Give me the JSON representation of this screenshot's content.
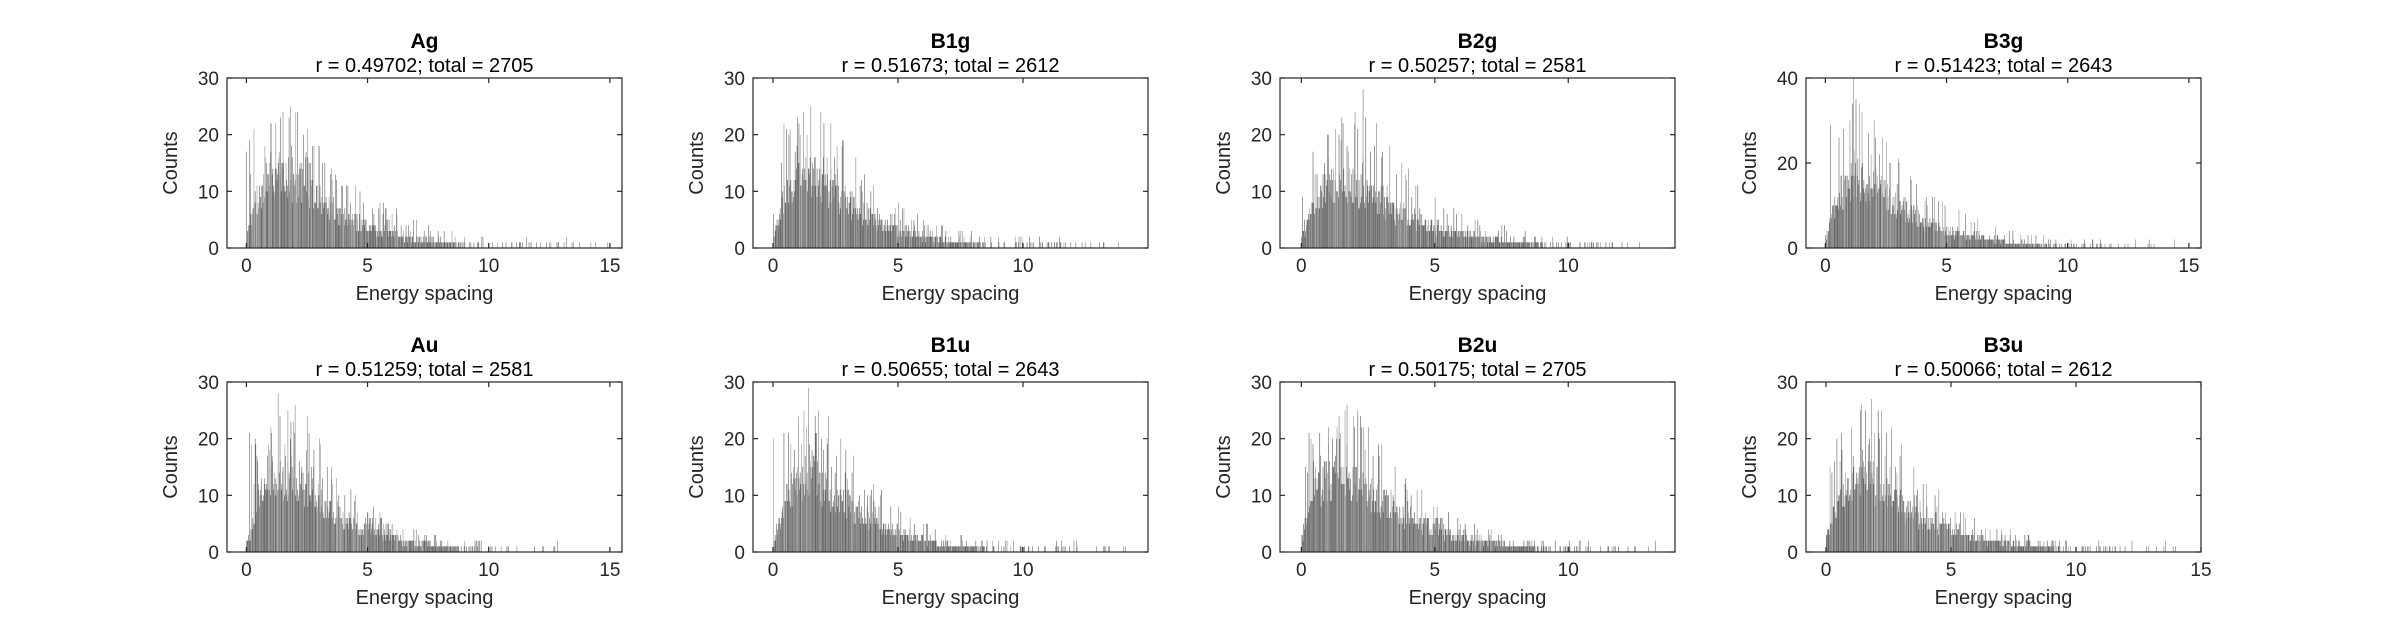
{
  "chart_data": [
    {
      "type": "bar",
      "title": "Ag",
      "subtitle": "r = 0.49702; total = 2705",
      "xlabel": "Energy spacing",
      "ylabel": "Counts",
      "xlim": [
        -0.8,
        15.5
      ],
      "ylim": [
        0,
        30
      ],
      "xticks": [
        0,
        5,
        10,
        15
      ],
      "yticks": [
        0,
        10,
        20,
        30
      ],
      "color": "#666666",
      "grid": false,
      "tail": 15,
      "profile": [
        {
          "x": 0,
          "y": 3
        },
        {
          "x": 0.25,
          "y": 8
        },
        {
          "x": 0.5,
          "y": 12
        },
        {
          "x": 1,
          "y": 15
        },
        {
          "x": 1.5,
          "y": 16
        },
        {
          "x": 2,
          "y": 15
        },
        {
          "x": 2.5,
          "y": 13
        },
        {
          "x": 3,
          "y": 10
        },
        {
          "x": 3.5,
          "y": 8
        },
        {
          "x": 4,
          "y": 6.5
        },
        {
          "x": 5,
          "y": 5
        },
        {
          "x": 6,
          "y": 3
        },
        {
          "x": 7,
          "y": 2
        },
        {
          "x": 8,
          "y": 1.2
        },
        {
          "x": 9,
          "y": 0.6
        },
        {
          "x": 10,
          "y": 0.3
        },
        {
          "x": 11,
          "y": 0.1
        },
        {
          "x": 12,
          "y": 0
        }
      ],
      "peaks": [
        {
          "x": 1.2,
          "y": 22
        },
        {
          "x": 1.5,
          "y": 24
        },
        {
          "x": 1.8,
          "y": 25
        },
        {
          "x": 2.1,
          "y": 24
        },
        {
          "x": 2.5,
          "y": 21
        },
        {
          "x": 3,
          "y": 18
        },
        {
          "x": 3.5,
          "y": 14
        },
        {
          "x": 4.5,
          "y": 11
        },
        {
          "x": 5.5,
          "y": 8
        },
        {
          "x": 7,
          "y": 5
        },
        {
          "x": 9,
          "y": 2
        },
        {
          "x": 12.5,
          "y": 1
        },
        {
          "x": 14.2,
          "y": 1
        }
      ]
    },
    {
      "type": "bar",
      "title": "B1g",
      "subtitle": "r = 0.51673; total = 2612",
      "xlabel": "Energy spacing",
      "ylabel": "Counts",
      "xlim": [
        -0.8,
        15
      ],
      "ylim": [
        0,
        30
      ],
      "xticks": [
        0,
        5,
        10
      ],
      "yticks": [
        0,
        10,
        20,
        30
      ],
      "color": "#666666",
      "grid": false,
      "tail": 14,
      "profile": [
        {
          "x": 0,
          "y": 2
        },
        {
          "x": 0.25,
          "y": 7
        },
        {
          "x": 0.5,
          "y": 12
        },
        {
          "x": 1,
          "y": 15
        },
        {
          "x": 1.5,
          "y": 16
        },
        {
          "x": 2,
          "y": 14
        },
        {
          "x": 2.5,
          "y": 12
        },
        {
          "x": 3,
          "y": 10
        },
        {
          "x": 3.5,
          "y": 8
        },
        {
          "x": 4,
          "y": 6
        },
        {
          "x": 5,
          "y": 4
        },
        {
          "x": 6,
          "y": 2.5
        },
        {
          "x": 7,
          "y": 1.5
        },
        {
          "x": 8,
          "y": 0.8
        },
        {
          "x": 9,
          "y": 0.4
        },
        {
          "x": 10,
          "y": 0.2
        },
        {
          "x": 11,
          "y": 0.1
        },
        {
          "x": 12,
          "y": 0
        }
      ],
      "peaks": [
        {
          "x": 1.2,
          "y": 24
        },
        {
          "x": 1.5,
          "y": 25
        },
        {
          "x": 1.9,
          "y": 24
        },
        {
          "x": 2.3,
          "y": 22
        },
        {
          "x": 2.8,
          "y": 19
        },
        {
          "x": 3.3,
          "y": 16
        },
        {
          "x": 4,
          "y": 11
        },
        {
          "x": 5,
          "y": 8
        },
        {
          "x": 6,
          "y": 5
        },
        {
          "x": 7.5,
          "y": 3
        },
        {
          "x": 9,
          "y": 2
        },
        {
          "x": 13.8,
          "y": 1
        }
      ]
    },
    {
      "type": "bar",
      "title": "B2g",
      "subtitle": "r = 0.50257; total = 2581",
      "xlabel": "Energy spacing",
      "ylabel": "Counts",
      "xlim": [
        -0.8,
        14
      ],
      "ylim": [
        0,
        30
      ],
      "xticks": [
        0,
        5,
        10
      ],
      "yticks": [
        0,
        10,
        20,
        30
      ],
      "color": "#666666",
      "grid": false,
      "tail": 13,
      "profile": [
        {
          "x": 0,
          "y": 2
        },
        {
          "x": 0.25,
          "y": 6
        },
        {
          "x": 0.5,
          "y": 10
        },
        {
          "x": 1,
          "y": 13
        },
        {
          "x": 1.5,
          "y": 14
        },
        {
          "x": 2,
          "y": 13
        },
        {
          "x": 2.5,
          "y": 12
        },
        {
          "x": 3,
          "y": 10
        },
        {
          "x": 3.5,
          "y": 8
        },
        {
          "x": 4,
          "y": 6.5
        },
        {
          "x": 5,
          "y": 4.5
        },
        {
          "x": 6,
          "y": 3
        },
        {
          "x": 7,
          "y": 2
        },
        {
          "x": 8,
          "y": 1.2
        },
        {
          "x": 9,
          "y": 0.6
        },
        {
          "x": 10,
          "y": 0.3
        },
        {
          "x": 11,
          "y": 0.1
        },
        {
          "x": 12,
          "y": 0
        }
      ],
      "peaks": [
        {
          "x": 1,
          "y": 20
        },
        {
          "x": 1.5,
          "y": 23
        },
        {
          "x": 2,
          "y": 24
        },
        {
          "x": 2.3,
          "y": 28
        },
        {
          "x": 2.8,
          "y": 22
        },
        {
          "x": 3.3,
          "y": 18
        },
        {
          "x": 4,
          "y": 14
        },
        {
          "x": 5,
          "y": 9
        },
        {
          "x": 6,
          "y": 6
        },
        {
          "x": 7.5,
          "y": 4
        },
        {
          "x": 9,
          "y": 2
        },
        {
          "x": 12.2,
          "y": 1
        }
      ]
    },
    {
      "type": "bar",
      "title": "B3g",
      "subtitle": "r = 0.51423; total = 2643",
      "xlabel": "Energy spacing",
      "ylabel": "Counts",
      "xlim": [
        -0.8,
        15.5
      ],
      "ylim": [
        0,
        40
      ],
      "xticks": [
        0,
        5,
        10,
        15
      ],
      "yticks": [
        0,
        20,
        40
      ],
      "color": "#666666",
      "grid": false,
      "tail": 14.5,
      "profile": [
        {
          "x": 0,
          "y": 3
        },
        {
          "x": 0.25,
          "y": 9
        },
        {
          "x": 0.5,
          "y": 15
        },
        {
          "x": 1,
          "y": 19
        },
        {
          "x": 1.5,
          "y": 20
        },
        {
          "x": 2,
          "y": 18
        },
        {
          "x": 2.5,
          "y": 15
        },
        {
          "x": 3,
          "y": 12
        },
        {
          "x": 3.5,
          "y": 10
        },
        {
          "x": 4,
          "y": 8
        },
        {
          "x": 5,
          "y": 5
        },
        {
          "x": 6,
          "y": 3.5
        },
        {
          "x": 7,
          "y": 2
        },
        {
          "x": 8,
          "y": 1.2
        },
        {
          "x": 9,
          "y": 0.6
        },
        {
          "x": 10,
          "y": 0.3
        },
        {
          "x": 11,
          "y": 0.1
        },
        {
          "x": 12,
          "y": 0
        }
      ],
      "peaks": [
        {
          "x": 1,
          "y": 30
        },
        {
          "x": 1.15,
          "y": 40
        },
        {
          "x": 1.5,
          "y": 32
        },
        {
          "x": 2,
          "y": 30
        },
        {
          "x": 2.5,
          "y": 25
        },
        {
          "x": 3,
          "y": 21
        },
        {
          "x": 3.5,
          "y": 17
        },
        {
          "x": 4.5,
          "y": 12
        },
        {
          "x": 5.5,
          "y": 9
        },
        {
          "x": 7,
          "y": 5
        },
        {
          "x": 9,
          "y": 3
        },
        {
          "x": 11,
          "y": 2
        },
        {
          "x": 14.4,
          "y": 2
        }
      ]
    },
    {
      "type": "bar",
      "title": "Au",
      "subtitle": "r = 0.51259; total = 2581",
      "xlabel": "Energy spacing",
      "ylabel": "Counts",
      "xlim": [
        -0.8,
        15.5
      ],
      "ylim": [
        0,
        30
      ],
      "xticks": [
        0,
        5,
        10,
        15
      ],
      "yticks": [
        0,
        10,
        20,
        30
      ],
      "color": "#666666",
      "grid": false,
      "tail": 13,
      "profile": [
        {
          "x": 0,
          "y": 2
        },
        {
          "x": 0.25,
          "y": 6
        },
        {
          "x": 0.5,
          "y": 12
        },
        {
          "x": 1,
          "y": 16
        },
        {
          "x": 1.5,
          "y": 17
        },
        {
          "x": 2,
          "y": 16
        },
        {
          "x": 2.5,
          "y": 14
        },
        {
          "x": 3,
          "y": 12
        },
        {
          "x": 3.5,
          "y": 9
        },
        {
          "x": 4,
          "y": 7
        },
        {
          "x": 5,
          "y": 5
        },
        {
          "x": 6,
          "y": 3
        },
        {
          "x": 7,
          "y": 2
        },
        {
          "x": 8,
          "y": 1.2
        },
        {
          "x": 9,
          "y": 0.6
        },
        {
          "x": 10,
          "y": 0.3
        },
        {
          "x": 11,
          "y": 0.1
        },
        {
          "x": 12,
          "y": 0
        }
      ],
      "peaks": [
        {
          "x": 1,
          "y": 22
        },
        {
          "x": 1.3,
          "y": 28
        },
        {
          "x": 1.7,
          "y": 25
        },
        {
          "x": 2,
          "y": 26
        },
        {
          "x": 2.5,
          "y": 24
        },
        {
          "x": 3,
          "y": 20
        },
        {
          "x": 3.5,
          "y": 15
        },
        {
          "x": 4.5,
          "y": 10
        },
        {
          "x": 5.5,
          "y": 7
        },
        {
          "x": 7,
          "y": 4
        },
        {
          "x": 9,
          "y": 2
        },
        {
          "x": 12.7,
          "y": 1
        }
      ]
    },
    {
      "type": "bar",
      "title": "B1u",
      "subtitle": "r = 0.50655; total = 2643",
      "xlabel": "Energy spacing",
      "ylabel": "Counts",
      "xlim": [
        -0.8,
        15
      ],
      "ylim": [
        0,
        30
      ],
      "xticks": [
        0,
        5,
        10
      ],
      "yticks": [
        0,
        10,
        20,
        30
      ],
      "color": "#666666",
      "grid": false,
      "tail": 14.5,
      "profile": [
        {
          "x": 0,
          "y": 2
        },
        {
          "x": 0.25,
          "y": 7
        },
        {
          "x": 0.5,
          "y": 12
        },
        {
          "x": 1,
          "y": 16
        },
        {
          "x": 1.5,
          "y": 17
        },
        {
          "x": 2,
          "y": 15
        },
        {
          "x": 2.5,
          "y": 12
        },
        {
          "x": 3,
          "y": 10
        },
        {
          "x": 3.5,
          "y": 8
        },
        {
          "x": 4,
          "y": 6
        },
        {
          "x": 5,
          "y": 4
        },
        {
          "x": 6,
          "y": 2.5
        },
        {
          "x": 7,
          "y": 1.5
        },
        {
          "x": 8,
          "y": 0.8
        },
        {
          "x": 9,
          "y": 0.4
        },
        {
          "x": 10,
          "y": 0.2
        },
        {
          "x": 11,
          "y": 0.1
        },
        {
          "x": 12,
          "y": 0
        }
      ],
      "peaks": [
        {
          "x": 1,
          "y": 24
        },
        {
          "x": 1.4,
          "y": 29
        },
        {
          "x": 1.8,
          "y": 25
        },
        {
          "x": 2.2,
          "y": 24
        },
        {
          "x": 2.7,
          "y": 20
        },
        {
          "x": 3.2,
          "y": 17
        },
        {
          "x": 4,
          "y": 12
        },
        {
          "x": 5,
          "y": 8
        },
        {
          "x": 6,
          "y": 5
        },
        {
          "x": 7.5,
          "y": 3
        },
        {
          "x": 9,
          "y": 2
        },
        {
          "x": 14,
          "y": 1
        }
      ]
    },
    {
      "type": "bar",
      "title": "B2u",
      "subtitle": "r = 0.50175; total = 2705",
      "xlabel": "Energy spacing",
      "ylabel": "Counts",
      "xlim": [
        -0.8,
        14
      ],
      "ylim": [
        0,
        30
      ],
      "xticks": [
        0,
        5,
        10
      ],
      "yticks": [
        0,
        10,
        20,
        30
      ],
      "color": "#666666",
      "grid": false,
      "tail": 13.5,
      "profile": [
        {
          "x": 0,
          "y": 3
        },
        {
          "x": 0.25,
          "y": 8
        },
        {
          "x": 0.5,
          "y": 13
        },
        {
          "x": 1,
          "y": 16
        },
        {
          "x": 1.5,
          "y": 17
        },
        {
          "x": 2,
          "y": 15
        },
        {
          "x": 2.5,
          "y": 13
        },
        {
          "x": 3,
          "y": 11
        },
        {
          "x": 3.5,
          "y": 9
        },
        {
          "x": 4,
          "y": 7
        },
        {
          "x": 5,
          "y": 5
        },
        {
          "x": 6,
          "y": 3
        },
        {
          "x": 7,
          "y": 2
        },
        {
          "x": 8,
          "y": 1.2
        },
        {
          "x": 9,
          "y": 0.6
        },
        {
          "x": 10,
          "y": 0.3
        },
        {
          "x": 11,
          "y": 0.1
        },
        {
          "x": 12,
          "y": 0
        }
      ],
      "peaks": [
        {
          "x": 1,
          "y": 22
        },
        {
          "x": 1.4,
          "y": 24
        },
        {
          "x": 1.7,
          "y": 26
        },
        {
          "x": 2.1,
          "y": 25
        },
        {
          "x": 2.5,
          "y": 22
        },
        {
          "x": 3,
          "y": 19
        },
        {
          "x": 3.5,
          "y": 15
        },
        {
          "x": 4.5,
          "y": 11
        },
        {
          "x": 5.5,
          "y": 7
        },
        {
          "x": 7,
          "y": 4
        },
        {
          "x": 9,
          "y": 2
        },
        {
          "x": 13,
          "y": 1
        }
      ]
    },
    {
      "type": "bar",
      "title": "B3u",
      "subtitle": "r = 0.50066; total = 2612",
      "xlabel": "Energy spacing",
      "ylabel": "Counts",
      "xlim": [
        -0.8,
        15
      ],
      "ylim": [
        0,
        30
      ],
      "xticks": [
        0,
        5,
        10,
        15
      ],
      "yticks": [
        0,
        10,
        20,
        30
      ],
      "color": "#666666",
      "grid": false,
      "tail": 14,
      "profile": [
        {
          "x": 0,
          "y": 3
        },
        {
          "x": 0.25,
          "y": 8
        },
        {
          "x": 0.5,
          "y": 12
        },
        {
          "x": 1,
          "y": 15
        },
        {
          "x": 1.5,
          "y": 16
        },
        {
          "x": 2,
          "y": 15
        },
        {
          "x": 2.5,
          "y": 13
        },
        {
          "x": 3,
          "y": 10
        },
        {
          "x": 3.5,
          "y": 8
        },
        {
          "x": 4,
          "y": 6.5
        },
        {
          "x": 5,
          "y": 5
        },
        {
          "x": 6,
          "y": 3
        },
        {
          "x": 7,
          "y": 2
        },
        {
          "x": 8,
          "y": 1.2
        },
        {
          "x": 9,
          "y": 0.6
        },
        {
          "x": 10,
          "y": 0.3
        },
        {
          "x": 11,
          "y": 0.1
        },
        {
          "x": 12,
          "y": 0
        }
      ],
      "peaks": [
        {
          "x": 1,
          "y": 22
        },
        {
          "x": 1.4,
          "y": 26
        },
        {
          "x": 1.8,
          "y": 27
        },
        {
          "x": 2.2,
          "y": 25
        },
        {
          "x": 2.6,
          "y": 22
        },
        {
          "x": 3,
          "y": 19
        },
        {
          "x": 3.5,
          "y": 15
        },
        {
          "x": 4.5,
          "y": 11
        },
        {
          "x": 5.5,
          "y": 7
        },
        {
          "x": 7,
          "y": 4
        },
        {
          "x": 9,
          "y": 2
        },
        {
          "x": 13.5,
          "y": 1
        }
      ]
    }
  ]
}
